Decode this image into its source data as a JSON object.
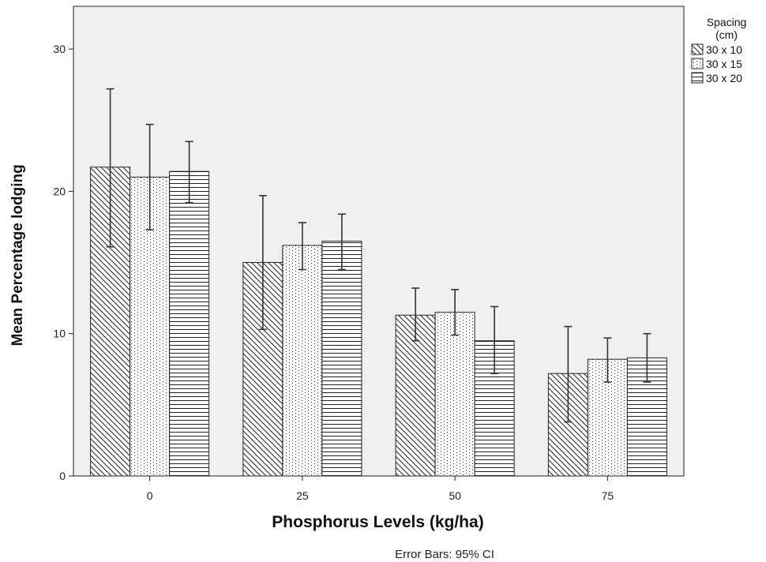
{
  "chart_data": {
    "type": "bar",
    "xlabel": "Phosphorus Levels (kg/ha)",
    "ylabel": "Mean Percentage lodging",
    "categories": [
      "0",
      "25",
      "50",
      "75"
    ],
    "ylim": [
      0,
      33
    ],
    "yticks": [
      0,
      10,
      20,
      30
    ],
    "yticklabels": [
      "0",
      "10",
      "20",
      "30"
    ],
    "grid": false,
    "legend": {
      "title": "Spacing\n(cm)",
      "placement": "outside-right-top"
    },
    "series": [
      {
        "name": "30 x 10",
        "pattern": "diagonal",
        "values": [
          21.7,
          15.0,
          11.3,
          7.2
        ],
        "ci_low": [
          16.1,
          10.3,
          9.5,
          3.8
        ],
        "ci_high": [
          27.2,
          19.7,
          13.2,
          10.5
        ]
      },
      {
        "name": "30 x 15",
        "pattern": "dotted",
        "values": [
          21.0,
          16.2,
          11.5,
          8.2
        ],
        "ci_low": [
          17.3,
          14.5,
          9.9,
          6.6
        ],
        "ci_high": [
          24.7,
          17.8,
          13.1,
          9.7
        ]
      },
      {
        "name": "30 x 20",
        "pattern": "horizontal",
        "values": [
          21.4,
          16.5,
          9.5,
          8.3
        ],
        "ci_low": [
          19.2,
          14.5,
          7.2,
          6.6
        ],
        "ci_high": [
          23.5,
          18.4,
          11.9,
          10.0
        ]
      }
    ],
    "note": "Error Bars: 95% CI",
    "colors": {
      "plot_background": "#f0f0f0",
      "bar_fill": "#ffffff",
      "stroke": "#222222"
    }
  }
}
